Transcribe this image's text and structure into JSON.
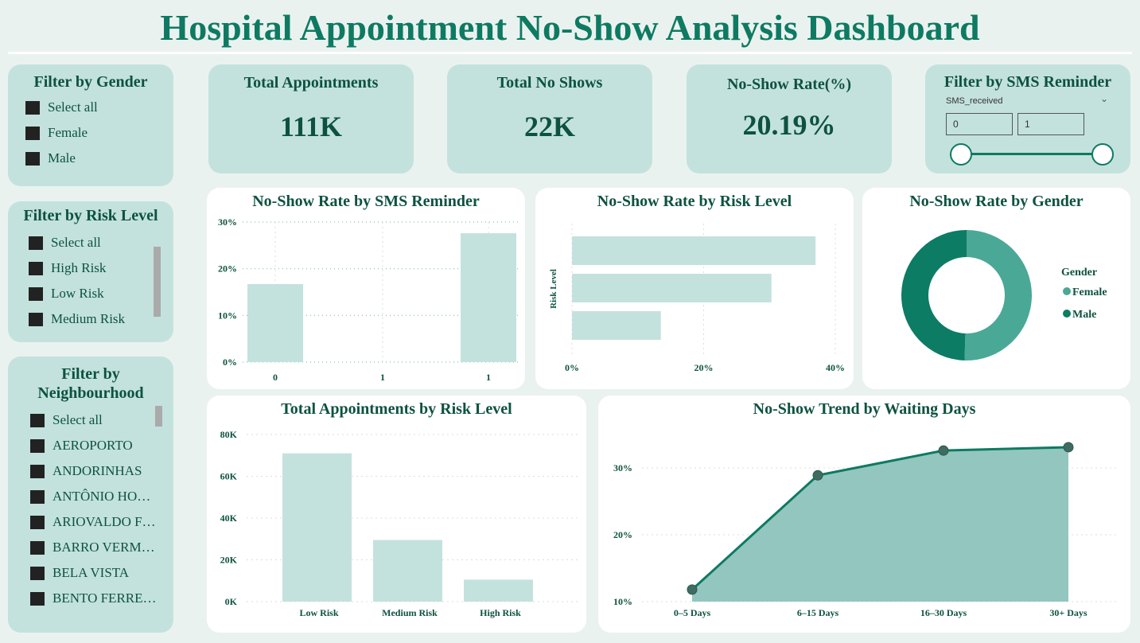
{
  "title": "Hospital Appointment No-Show Analysis Dashboard",
  "filters": {
    "gender": {
      "title": "Filter by Gender",
      "items": [
        "Select all",
        "Female",
        "Male"
      ]
    },
    "risk": {
      "title": "Filter by Risk Level",
      "items": [
        "Select all",
        "High Risk",
        "Low Risk",
        "Medium Risk"
      ]
    },
    "neighbourhood": {
      "title": "Filter by Neighbourhood",
      "items": [
        "Select all",
        "AEROPORTO",
        "ANDORINHAS",
        "ANTÔNIO HO…",
        "ARIOVALDO F…",
        "BARRO VERM…",
        "BELA VISTA",
        "BENTO FERRE…"
      ]
    },
    "sms": {
      "title": "Filter by SMS Reminder",
      "field": "SMS_received",
      "min": "0",
      "max": "1"
    }
  },
  "kpis": [
    {
      "label": "Total Appointments",
      "value": "111K"
    },
    {
      "label": "Total No Shows",
      "value": "22K"
    },
    {
      "label": "No-Show Rate(%)",
      "value": "20.19%"
    }
  ],
  "colors": {
    "bar": "#c3e2dd",
    "accent": "#0e7a62",
    "female": "#4aa896",
    "male": "#0c7c64",
    "area": "#93c6be"
  },
  "chart_data": [
    {
      "type": "bar",
      "title": "No-Show Rate by SMS Reminder",
      "categories": [
        "0",
        "1",
        "1"
      ],
      "values": [
        16.7,
        null,
        27.6
      ],
      "yticks": [
        "0%",
        "10%",
        "20%",
        "30%"
      ],
      "ylim": [
        0,
        30
      ],
      "grid": true
    },
    {
      "type": "bar",
      "orientation": "horizontal",
      "title": "No-Show Rate by Risk Level",
      "ylabel": "Risk Level",
      "values": [
        37,
        30.3,
        13.5
      ],
      "xticks": [
        "0%",
        "20%",
        "40%"
      ],
      "xlim": [
        0,
        40
      ],
      "grid": true
    },
    {
      "type": "pie",
      "title": "No-Show Rate by Gender",
      "legend_title": "Gender",
      "labels": [
        "Female",
        "Male"
      ],
      "values": [
        50.5,
        49.5
      ],
      "legend": "right"
    },
    {
      "type": "bar",
      "title": "Total Appointments by Risk Level",
      "categories": [
        "Low Risk",
        "Medium Risk",
        "High Risk"
      ],
      "values": [
        71000,
        29500,
        10500
      ],
      "yticks": [
        "0K",
        "20K",
        "40K",
        "60K",
        "80K"
      ],
      "ylim": [
        0,
        80000
      ],
      "grid": true
    },
    {
      "type": "area",
      "title": "No-Show Trend by Waiting Days",
      "categories": [
        "0–5 Days",
        "6–15 Days",
        "16–30 Days",
        "30+ Days"
      ],
      "values": [
        11.8,
        28.9,
        32.6,
        33.1
      ],
      "yticks": [
        "10%",
        "20%",
        "30%"
      ],
      "ylim": [
        10,
        30
      ],
      "grid": true
    }
  ]
}
